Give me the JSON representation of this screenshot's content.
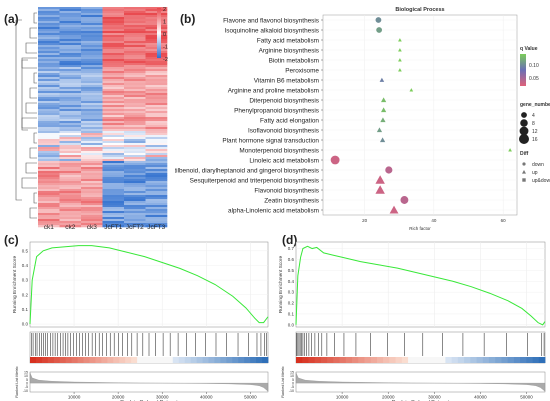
{
  "panels": {
    "a": "(a)",
    "b": "(b)",
    "c": "(c)",
    "d": "(d)"
  },
  "chart_data": [
    {
      "type": "heatmap",
      "panel": "a",
      "columns": [
        "ck1",
        "ck2",
        "ck3",
        "JcFT1",
        "JcFT2",
        "JcFT3"
      ],
      "colorbar_ticks": [
        "2",
        "1",
        "0",
        "-1",
        "-2"
      ],
      "colors": {
        "high": "#e8474c",
        "mid": "#ffffff",
        "low": "#2f6fce"
      },
      "row_blocks": [
        {
          "fraction": 0.26,
          "pattern": "ck_low_treat_high_strong"
        },
        {
          "fraction": 0.3,
          "pattern": "ck_low_treat_high_medium"
        },
        {
          "fraction": 0.14,
          "pattern": "mixed"
        },
        {
          "fraction": 0.3,
          "pattern": "ck_high_treat_low"
        }
      ]
    },
    {
      "type": "scatter",
      "panel": "b",
      "title": "Biological Process",
      "xlabel": "Rich factor",
      "x_ticks": [
        20,
        40,
        60
      ],
      "xlim": [
        8,
        64
      ],
      "categories": [
        "Flavone and flavonol biosynthesis",
        "Isoquinoline alkaloid biosynthesis",
        "Fatty acid metabolism",
        "Arginine biosynthesis",
        "Biotin metabolism",
        "Peroxisome",
        "Vitamin B6 metabolism",
        "Arginine and proline metabolism",
        "Diterpenoid biosynthesis",
        "Phenylpropanoid biosynthesis",
        "Fatty acid elongation",
        "Isoflavonoid biosynthesis",
        "Plant hormone signal transduction",
        "Monoterpenoid biosynthesis",
        "Linoleic acid metabolism",
        "Stilbenoid, diarylheptanoid and gingerol biosynthesis",
        "Sesquiterpenoid and triterpenoid biosynthesis",
        "Flavonoid biosynthesis",
        "Zeatin biosynthesis",
        "alpha-Linolenic acid metabolism"
      ],
      "points": [
        {
          "x": 24.0,
          "size": 4,
          "q": 0.08,
          "diff": "down"
        },
        {
          "x": 24.2,
          "size": 4,
          "q": 0.09,
          "diff": "down"
        },
        {
          "x": 30.2,
          "size": 1,
          "q": 0.12,
          "diff": "up"
        },
        {
          "x": 30.2,
          "size": 1,
          "q": 0.12,
          "diff": "up"
        },
        {
          "x": 30.2,
          "size": 1,
          "q": 0.12,
          "diff": "up"
        },
        {
          "x": 30.2,
          "size": 1,
          "q": 0.12,
          "diff": "up"
        },
        {
          "x": 25.0,
          "size": 2,
          "q": 0.07,
          "diff": "up"
        },
        {
          "x": 33.5,
          "size": 1,
          "q": 0.12,
          "diff": "up"
        },
        {
          "x": 25.5,
          "size": 3,
          "q": 0.11,
          "diff": "up"
        },
        {
          "x": 25.5,
          "size": 3,
          "q": 0.11,
          "diff": "up"
        },
        {
          "x": 25.3,
          "size": 3,
          "q": 0.1,
          "diff": "up"
        },
        {
          "x": 24.3,
          "size": 3,
          "q": 0.09,
          "diff": "up"
        },
        {
          "x": 25.2,
          "size": 3,
          "q": 0.08,
          "diff": "up"
        },
        {
          "x": 62.0,
          "size": 1,
          "q": 0.12,
          "diff": "up"
        },
        {
          "x": 11.5,
          "size": 12,
          "q": 0.01,
          "diff": "down"
        },
        {
          "x": 27.0,
          "size": 7,
          "q": 0.02,
          "diff": "down"
        },
        {
          "x": 24.5,
          "size": 14,
          "q": 0.01,
          "diff": "up"
        },
        {
          "x": 24.5,
          "size": 14,
          "q": 0.01,
          "diff": "up"
        },
        {
          "x": 31.5,
          "size": 9,
          "q": 0.02,
          "diff": "down"
        },
        {
          "x": 28.5,
          "size": 12,
          "q": 0.01,
          "diff": "up"
        }
      ],
      "legend": {
        "q_title": "q Value",
        "q_ticks": [
          "0.10",
          "0.05"
        ],
        "size_title": "gene_number",
        "size_ticks": [
          "4",
          "8",
          "12",
          "16"
        ],
        "diff_title": "Diff",
        "diff_items": [
          "down",
          "up",
          "up&down"
        ]
      }
    },
    {
      "type": "line",
      "panel": "c",
      "ylabel_top": "Running Enrichment Score",
      "ylabel_bottom": "Ranked List Metric",
      "xlabel": "Rank in Ordered Dataset",
      "x_ticks": [
        10000,
        20000,
        30000,
        40000,
        50000
      ],
      "xlim": [
        0,
        54000
      ],
      "es_ticks": [
        "0.5",
        "0.4",
        "0.3",
        "0.2",
        "0.1",
        "0.0"
      ],
      "es_ylim": [
        -0.02,
        0.56
      ],
      "metric_ticks": [
        "15",
        "10",
        "5",
        "0",
        "-5",
        "-10"
      ],
      "es_curve": {
        "x": [
          0,
          500,
          1500,
          3000,
          5000,
          7000,
          9000,
          11000,
          14000,
          18000,
          22000,
          26000,
          30000,
          34000,
          38000,
          42000,
          46000,
          49000,
          51000,
          52000,
          53000,
          54000
        ],
        "y": [
          0.0,
          0.3,
          0.46,
          0.5,
          0.52,
          0.525,
          0.53,
          0.535,
          0.535,
          0.52,
          0.49,
          0.46,
          0.42,
          0.38,
          0.33,
          0.27,
          0.19,
          0.11,
          0.04,
          0.01,
          0.01,
          0.05
        ]
      },
      "hits": [
        300,
        700,
        1200,
        1600,
        2100,
        2600,
        3100,
        3500,
        4000,
        4600,
        5200,
        5700,
        6300,
        6900,
        7500,
        8100,
        8600,
        9200,
        9900,
        10500,
        11200,
        11900,
        12600,
        13300,
        14100,
        14900,
        15700,
        16500,
        17400,
        18200,
        19100,
        20100,
        21000,
        22100,
        23100,
        24300,
        25600,
        27000,
        28500,
        30200,
        31800,
        33600,
        35500,
        37600,
        39800,
        42200,
        44600,
        47200,
        49600,
        51500,
        52400,
        53200,
        53700
      ],
      "metric": {
        "x": [
          0,
          500,
          2000,
          5000,
          10000,
          15000,
          20000,
          25000,
          30000,
          35000,
          40000,
          45000,
          50000,
          52000,
          53000,
          54000
        ],
        "y": [
          14,
          7,
          4,
          2.5,
          1.5,
          1,
          0.5,
          0.2,
          0,
          -0.2,
          -0.5,
          -1,
          -2,
          -3.5,
          -6,
          -11
        ]
      }
    },
    {
      "type": "line",
      "panel": "d",
      "ylabel_top": "Running Enrichment Score",
      "ylabel_bottom": "Ranked List Metric",
      "xlabel": "Rank in Ordered Dataset",
      "x_ticks": [
        10000,
        20000,
        30000,
        40000,
        50000
      ],
      "xlim": [
        0,
        54000
      ],
      "es_ticks": [
        "0.7",
        "0.6",
        "0.5",
        "0.4",
        "0.3",
        "0.2",
        "0.1",
        "0.0"
      ],
      "es_ylim": [
        -0.02,
        0.76
      ],
      "metric_ticks": [
        "15",
        "10",
        "5",
        "0",
        "-5",
        "-10"
      ],
      "es_curve": {
        "x": [
          0,
          400,
          1000,
          1500,
          2500,
          3500,
          4500,
          6000,
          8000,
          10000,
          14000,
          18000,
          22000,
          26000,
          30000,
          34000,
          38000,
          42000,
          46000,
          49000,
          51000,
          52500,
          53500,
          54000
        ],
        "y": [
          0.0,
          0.45,
          0.62,
          0.7,
          0.72,
          0.7,
          0.71,
          0.66,
          0.64,
          0.62,
          0.58,
          0.55,
          0.52,
          0.48,
          0.44,
          0.4,
          0.35,
          0.29,
          0.22,
          0.15,
          0.08,
          0.02,
          0.0,
          0.03
        ]
      },
      "hits": [
        150,
        400,
        650,
        900,
        1200,
        1500,
        1900,
        2300,
        2800,
        3400,
        4100,
        4900,
        5600,
        6700,
        8300,
        10400,
        13000,
        16200,
        19800,
        23500,
        27500,
        31800,
        36200,
        40800,
        45600,
        50200,
        53300,
        53800
      ],
      "metric": {
        "x": [
          0,
          500,
          2000,
          5000,
          10000,
          15000,
          20000,
          25000,
          30000,
          35000,
          40000,
          45000,
          50000,
          52000,
          53000,
          54000
        ],
        "y": [
          14,
          7,
          4,
          2.5,
          1.5,
          1,
          0.5,
          0.2,
          0,
          -0.2,
          -0.5,
          -1,
          -2,
          -3.5,
          -6,
          -11
        ]
      }
    }
  ]
}
